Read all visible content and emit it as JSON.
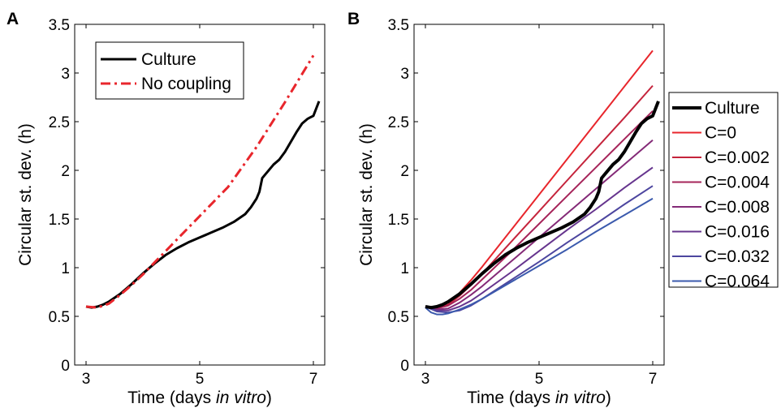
{
  "chart_data": [
    {
      "type": "line",
      "panel_label": "A",
      "xlabel_prefix": "Time (days ",
      "xlabel_italic": "in vitro",
      "xlabel_suffix": ")",
      "ylabel": "Circular st. dev. (h)",
      "xlim": [
        2.8,
        7.2
      ],
      "ylim": [
        0,
        3.5
      ],
      "xticks": [
        3,
        5,
        7
      ],
      "yticks": [
        0,
        0.5,
        1,
        1.5,
        2,
        2.5,
        3,
        3.5
      ],
      "ytick_labels": [
        "0",
        "0.5",
        "1",
        "1.5",
        "2",
        "2.5",
        "3",
        "3.5"
      ],
      "legend_position": "top-left",
      "series": [
        {
          "name": "Culture",
          "color": "#000000",
          "style": "solid",
          "width": 3,
          "x": [
            3.0,
            3.1,
            3.2,
            3.3,
            3.4,
            3.6,
            3.8,
            4.0,
            4.2,
            4.4,
            4.6,
            4.8,
            5.0,
            5.2,
            5.4,
            5.6,
            5.8,
            5.9,
            6.0,
            6.05,
            6.1,
            6.2,
            6.3,
            6.4,
            6.5,
            6.6,
            6.7,
            6.8,
            6.9,
            7.0,
            7.1
          ],
          "y": [
            0.6,
            0.59,
            0.6,
            0.62,
            0.65,
            0.73,
            0.83,
            0.94,
            1.04,
            1.13,
            1.2,
            1.26,
            1.31,
            1.36,
            1.41,
            1.47,
            1.55,
            1.62,
            1.71,
            1.78,
            1.92,
            1.99,
            2.06,
            2.11,
            2.19,
            2.29,
            2.39,
            2.48,
            2.53,
            2.56,
            2.71
          ]
        },
        {
          "name": "No coupling",
          "color": "#e8262c",
          "style": "dashdot",
          "width": 3,
          "x": [
            3.0,
            3.2,
            3.4,
            3.6,
            3.8,
            4.0,
            4.5,
            5.0,
            5.5,
            6.0,
            6.5,
            7.0
          ],
          "y": [
            0.6,
            0.59,
            0.63,
            0.72,
            0.82,
            0.93,
            1.23,
            1.53,
            1.83,
            2.24,
            2.7,
            3.18
          ]
        }
      ]
    },
    {
      "type": "line",
      "panel_label": "B",
      "xlabel_prefix": "Time (days ",
      "xlabel_italic": "in vitro",
      "xlabel_suffix": ")",
      "ylabel": "Circular st. dev. (h)",
      "xlim": [
        2.8,
        7.2
      ],
      "ylim": [
        0,
        3.5
      ],
      "xticks": [
        3,
        5,
        7
      ],
      "yticks": [
        0,
        0.5,
        1,
        1.5,
        2,
        2.5,
        3,
        3.5
      ],
      "ytick_labels": [
        "0",
        "0.5",
        "1",
        "1.5",
        "2",
        "2.5",
        "3",
        "3.5"
      ],
      "legend_position": "outside-right",
      "series": [
        {
          "name": "Culture",
          "color": "#000000",
          "style": "solid",
          "width": 4,
          "x": [
            3.0,
            3.1,
            3.2,
            3.3,
            3.4,
            3.6,
            3.8,
            4.0,
            4.2,
            4.4,
            4.6,
            4.8,
            5.0,
            5.2,
            5.4,
            5.6,
            5.8,
            5.9,
            6.0,
            6.05,
            6.1,
            6.2,
            6.3,
            6.4,
            6.5,
            6.6,
            6.7,
            6.8,
            6.9,
            7.0,
            7.1
          ],
          "y": [
            0.6,
            0.59,
            0.6,
            0.62,
            0.65,
            0.73,
            0.83,
            0.94,
            1.04,
            1.13,
            1.2,
            1.26,
            1.31,
            1.36,
            1.41,
            1.47,
            1.55,
            1.62,
            1.71,
            1.78,
            1.92,
            1.99,
            2.06,
            2.11,
            2.19,
            2.29,
            2.39,
            2.48,
            2.53,
            2.56,
            2.71
          ]
        },
        {
          "name": "C=0",
          "color": "#e8262c",
          "style": "solid",
          "width": 2,
          "x": [
            3.0,
            3.2,
            3.4,
            3.6,
            3.8,
            4.0,
            4.5,
            5.0,
            5.5,
            6.0,
            6.5,
            7.0
          ],
          "y": [
            0.6,
            0.6,
            0.64,
            0.74,
            0.87,
            1.01,
            1.38,
            1.75,
            2.12,
            2.49,
            2.86,
            3.23
          ]
        },
        {
          "name": "C=0.002",
          "color": "#c5243c",
          "style": "solid",
          "width": 2,
          "x": [
            3.0,
            3.2,
            3.4,
            3.6,
            3.8,
            4.0,
            4.5,
            5.0,
            5.5,
            6.0,
            6.5,
            7.0
          ],
          "y": [
            0.6,
            0.59,
            0.62,
            0.71,
            0.82,
            0.94,
            1.26,
            1.58,
            1.9,
            2.22,
            2.54,
            2.87
          ]
        },
        {
          "name": "C=0.004",
          "color": "#a6245a",
          "style": "solid",
          "width": 2,
          "x": [
            3.0,
            3.2,
            3.4,
            3.6,
            3.8,
            4.0,
            4.5,
            5.0,
            5.5,
            6.0,
            6.5,
            7.0
          ],
          "y": [
            0.6,
            0.58,
            0.61,
            0.68,
            0.77,
            0.88,
            1.16,
            1.45,
            1.74,
            2.03,
            2.32,
            2.61
          ]
        },
        {
          "name": "C=0.008",
          "color": "#842a77",
          "style": "solid",
          "width": 2,
          "x": [
            3.0,
            3.2,
            3.4,
            3.6,
            3.8,
            4.0,
            4.5,
            5.0,
            5.5,
            6.0,
            6.5,
            7.0
          ],
          "y": [
            0.6,
            0.57,
            0.58,
            0.64,
            0.72,
            0.81,
            1.06,
            1.31,
            1.56,
            1.81,
            2.06,
            2.31
          ]
        },
        {
          "name": "C=0.016",
          "color": "#66358e",
          "style": "solid",
          "width": 2,
          "x": [
            3.0,
            3.2,
            3.4,
            3.6,
            3.8,
            4.0,
            4.5,
            5.0,
            5.5,
            6.0,
            6.5,
            7.0
          ],
          "y": [
            0.6,
            0.56,
            0.56,
            0.6,
            0.66,
            0.74,
            0.95,
            1.17,
            1.39,
            1.6,
            1.82,
            2.03
          ]
        },
        {
          "name": "C=0.032",
          "color": "#4d469f",
          "style": "solid",
          "width": 2,
          "x": [
            3.0,
            3.2,
            3.4,
            3.6,
            3.8,
            4.0,
            4.5,
            5.0,
            5.5,
            6.0,
            6.5,
            7.0
          ],
          "y": [
            0.6,
            0.55,
            0.54,
            0.56,
            0.61,
            0.68,
            0.87,
            1.06,
            1.26,
            1.45,
            1.65,
            1.84
          ]
        },
        {
          "name": "C=0.064",
          "color": "#3b5aad",
          "style": "solid",
          "width": 2,
          "x": [
            3.0,
            3.1,
            3.2,
            3.3,
            3.4,
            3.6,
            3.8,
            4.0,
            4.5,
            5.0,
            5.5,
            6.0,
            6.5,
            7.0
          ],
          "y": [
            0.59,
            0.54,
            0.52,
            0.52,
            0.53,
            0.57,
            0.62,
            0.68,
            0.85,
            1.02,
            1.19,
            1.37,
            1.54,
            1.71
          ]
        }
      ]
    }
  ]
}
